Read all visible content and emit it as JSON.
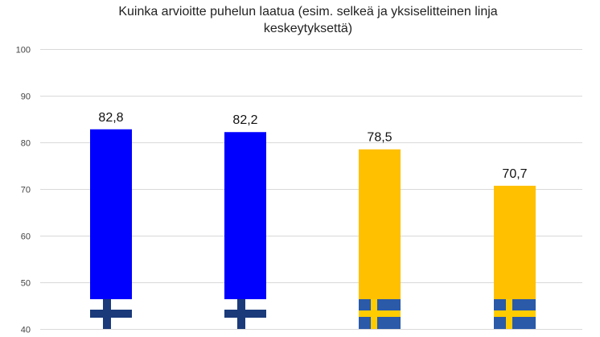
{
  "chart_data": {
    "type": "bar",
    "title": [
      "Kuinka arvioitte puhelun laatua (esim. selkeä ja yksiselitteinen linja",
      "keskeytyksettä)"
    ],
    "xlabel": "",
    "ylabel": "",
    "ylim": [
      40,
      100
    ],
    "yticks": [
      40,
      50,
      60,
      70,
      80,
      90,
      100
    ],
    "grid": true,
    "legend": "none",
    "categories": [
      "Finland flag",
      "Finland flag",
      "Sweden flag",
      "Sweden flag"
    ],
    "values": [
      82.8,
      82.2,
      78.5,
      70.7
    ],
    "value_labels": [
      "82,8",
      "82,2",
      "78,5",
      "70,7"
    ],
    "bar_colors": [
      "#0000ff",
      "#0000ff",
      "#ffc000",
      "#ffc000"
    ],
    "category_flags": [
      "finland-flag",
      "finland-flag",
      "sweden-flag",
      "sweden-flag"
    ],
    "flag_colors": {
      "finland": {
        "background": "#ffffff",
        "cross": "#1a3a7a"
      },
      "sweden": {
        "background": "#2a5aa8",
        "cross": "#ffcc00"
      }
    }
  }
}
